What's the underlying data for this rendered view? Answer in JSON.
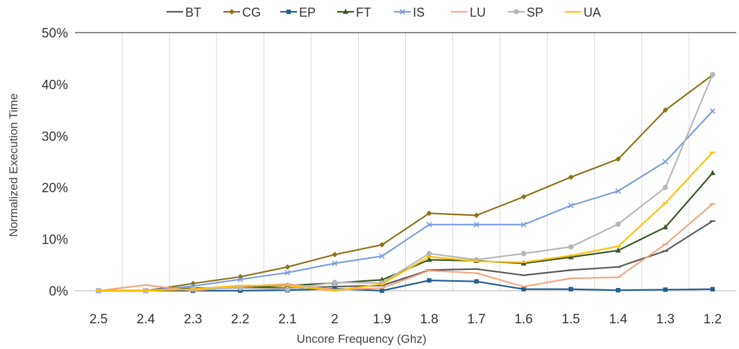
{
  "chart_data": {
    "type": "line",
    "title": "",
    "xlabel": "Uncore Frequency (Ghz)",
    "ylabel": "Normalized Execution Time",
    "x": [
      "2.5",
      "2.4",
      "2.3",
      "2.2",
      "2.1",
      "2",
      "1.9",
      "1.8",
      "1.7",
      "1.6",
      "1.5",
      "1.4",
      "1.3",
      "1.2"
    ],
    "ylim": [
      0,
      50
    ],
    "yticks": [
      "0%",
      "10%",
      "20%",
      "30%",
      "40%",
      "50%"
    ],
    "grid": "vertical",
    "legend_position": "top",
    "series": [
      {
        "name": "BT",
        "color": "#595959",
        "marker": "dash",
        "values": [
          0,
          0,
          0.5,
          0.6,
          0.5,
          0.8,
          1.0,
          4.0,
          4.2,
          3.0,
          4.0,
          4.6,
          7.7,
          13.5
        ]
      },
      {
        "name": "CG",
        "color": "#8c7218",
        "marker": "diamond",
        "values": [
          0,
          0,
          1.4,
          2.7,
          4.6,
          7.0,
          8.9,
          15.0,
          14.6,
          18.2,
          22.0,
          25.5,
          35.0,
          41.8
        ]
      },
      {
        "name": "EP",
        "color": "#255e91",
        "marker": "square",
        "values": [
          0,
          0,
          0,
          0,
          0.1,
          0.4,
          0,
          2.0,
          1.8,
          0.3,
          0.3,
          0.1,
          0.2,
          0.3
        ]
      },
      {
        "name": "FT",
        "color": "#385723",
        "marker": "triangle",
        "values": [
          0,
          0,
          0.4,
          0.5,
          1.0,
          1.5,
          2.1,
          6.0,
          5.8,
          5.3,
          6.5,
          7.8,
          12.3,
          22.8
        ]
      },
      {
        "name": "IS",
        "color": "#7a9ce0",
        "marker": "x",
        "values": [
          0,
          0,
          0.9,
          2.2,
          3.5,
          5.3,
          6.7,
          12.8,
          12.8,
          12.8,
          16.5,
          19.3,
          25.0,
          34.8
        ]
      },
      {
        "name": "LU",
        "color": "#f4a582",
        "marker": "dash",
        "values": [
          0,
          1.1,
          0,
          0.8,
          1.3,
          0.2,
          0.5,
          3.9,
          3.4,
          0.8,
          2.4,
          2.6,
          9.0,
          16.8
        ]
      },
      {
        "name": "SP",
        "color": "#b7b7b7",
        "marker": "circle",
        "values": [
          0,
          0,
          0.3,
          0.5,
          0.3,
          1.6,
          1.5,
          7.2,
          6.0,
          7.2,
          8.5,
          12.9,
          20.0,
          41.9
        ]
      },
      {
        "name": "UA",
        "color": "#ffc000",
        "marker": "dash",
        "values": [
          0,
          0,
          0.3,
          1.0,
          1.0,
          0,
          1.3,
          6.6,
          5.7,
          5.5,
          6.8,
          8.6,
          17.0,
          26.8
        ]
      }
    ]
  }
}
